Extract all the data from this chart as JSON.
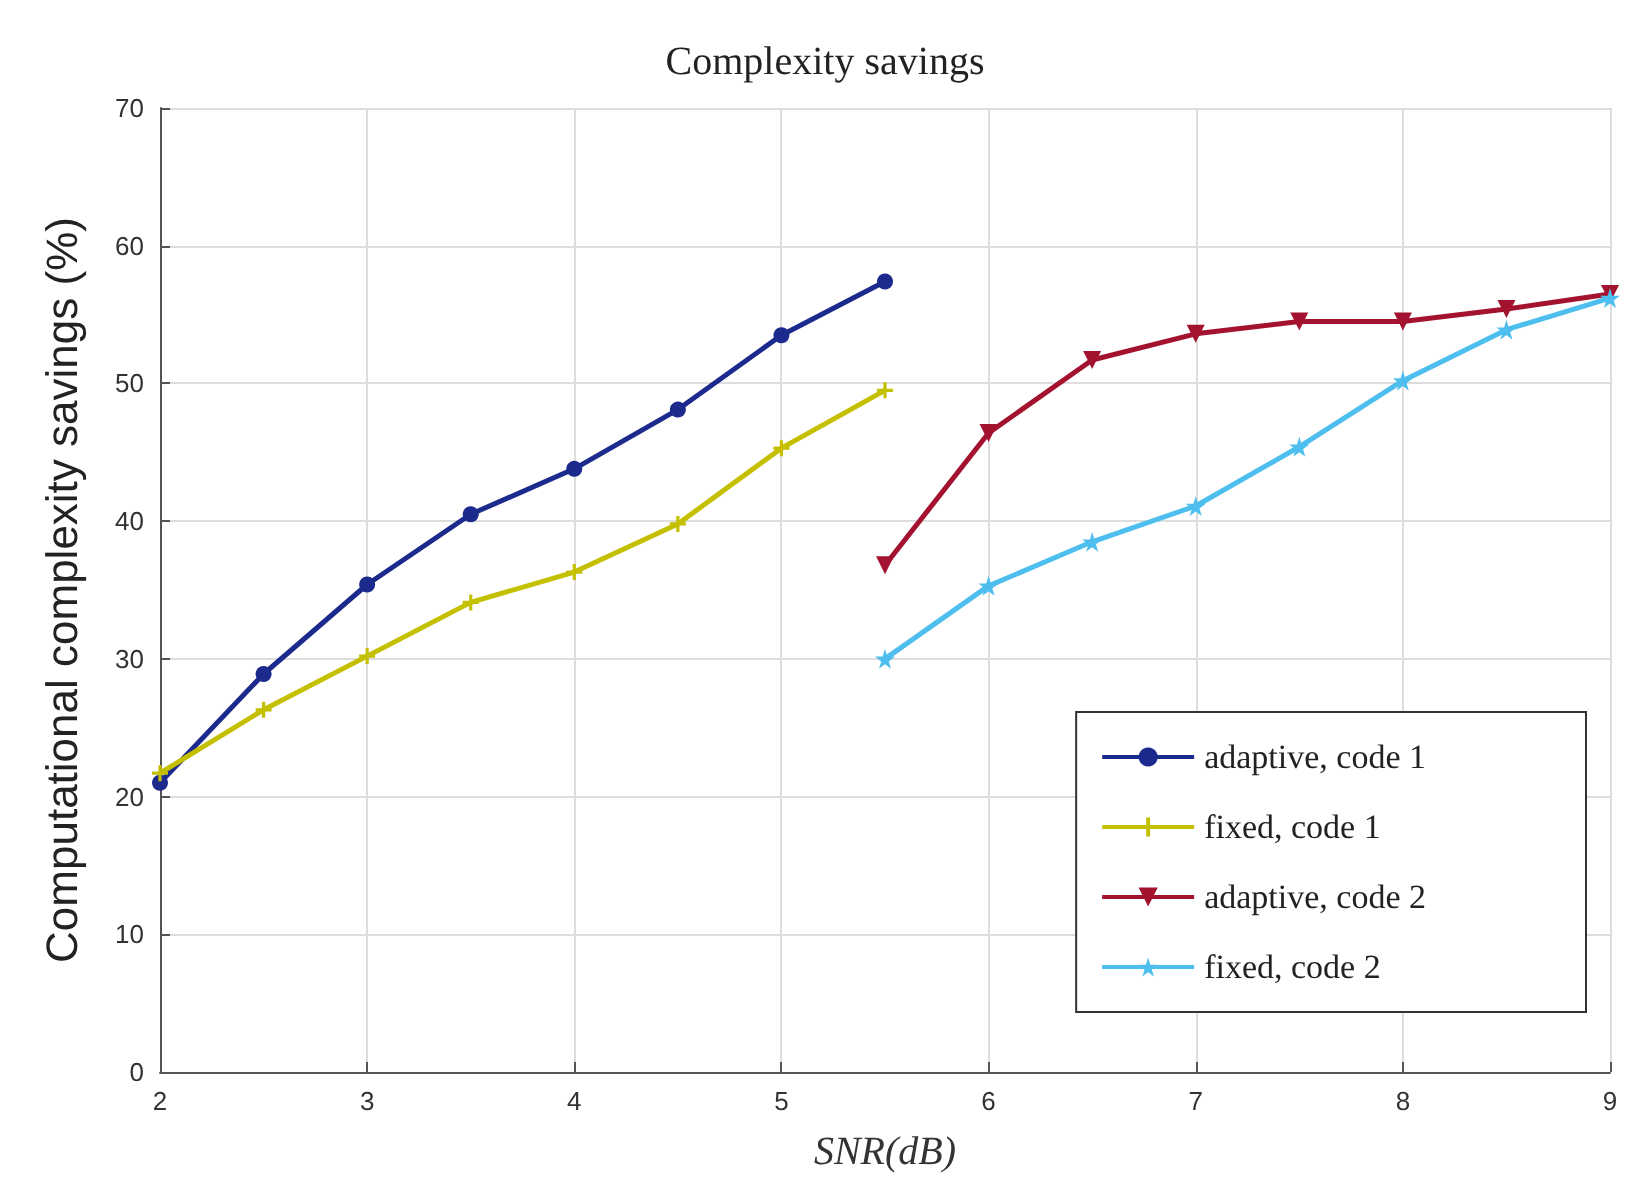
{
  "chart_data": {
    "type": "line",
    "title": "Complexity savings",
    "xlabel": "SNR(dB)",
    "ylabel": "Computational complexity savings (%)",
    "xlim": [
      2,
      9
    ],
    "xticks": [
      2,
      3,
      4,
      5,
      6,
      7,
      8,
      9
    ],
    "ylim": [
      0,
      70
    ],
    "yticks": [
      0,
      10,
      20,
      30,
      40,
      50,
      60,
      70
    ],
    "grid": true,
    "legend": "bottom right",
    "series": [
      {
        "name": "adaptive, code 1",
        "color": "#1b2a8c",
        "marker": "circle",
        "x": [
          2,
          2.5,
          3,
          3.5,
          4,
          4.5,
          5,
          5.5
        ],
        "values": [
          21,
          28.9,
          35.4,
          40.5,
          43.8,
          48.1,
          53.5,
          57.4
        ]
      },
      {
        "name": "fixed, code 1",
        "color": "#c4c000",
        "marker": "cross",
        "x": [
          2,
          2.5,
          3,
          3.5,
          4,
          4.5,
          5,
          5.5
        ],
        "values": [
          21.7,
          26.3,
          30.2,
          34.1,
          36.3,
          39.8,
          45.3,
          49.5
        ]
      },
      {
        "name": "adaptive, code 2",
        "color": "#a3122e",
        "marker": "triangle",
        "x": [
          5.5,
          6,
          6.5,
          7,
          7.5,
          8,
          8.5,
          9
        ],
        "values": [
          36.8,
          46.4,
          51.7,
          53.6,
          54.5,
          54.5,
          55.4,
          56.5
        ]
      },
      {
        "name": "fixed, code 2",
        "color": "#4dbeee",
        "marker": "star",
        "x": [
          5.5,
          6,
          6.5,
          7,
          7.5,
          8,
          8.5,
          9
        ],
        "values": [
          30,
          35.3,
          38.5,
          41.1,
          45.4,
          50.2,
          53.9,
          56.2
        ]
      }
    ]
  }
}
